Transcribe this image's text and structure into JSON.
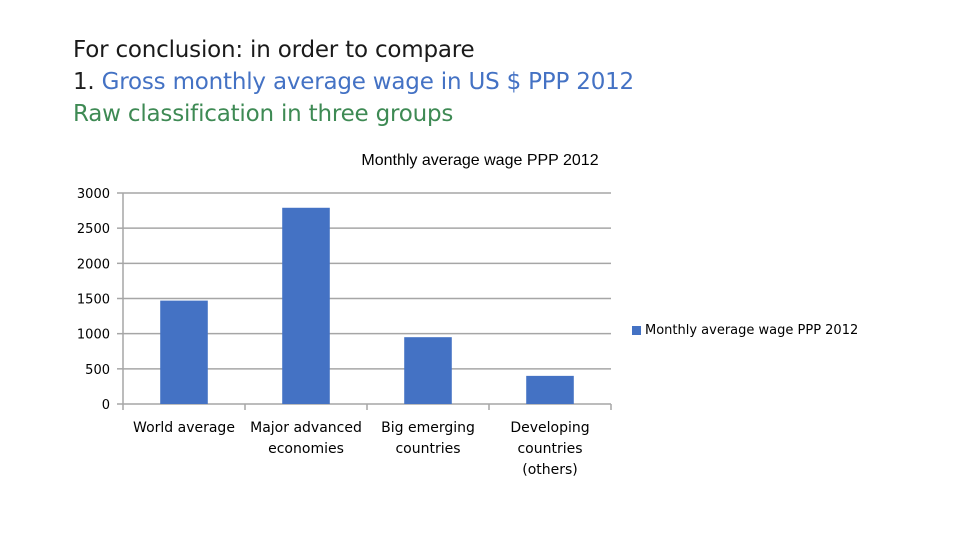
{
  "heading": {
    "line1": "For conclusion: in order to compare",
    "line2_prefix": "1. ",
    "line2_accent": "Gross monthly average wage in US $ PPP 2012",
    "line3": "Raw classification in three groups"
  },
  "colors": {
    "bar": "#4472c4",
    "accent_text": "#4472c4",
    "green_text": "#3e8a54",
    "grid": "#a6a6a6"
  },
  "chart_data": {
    "type": "bar",
    "title": "Monthly average wage PPP 2012",
    "categories": [
      [
        "World average"
      ],
      [
        "Major advanced",
        "economies"
      ],
      [
        "Big emerging",
        "countries"
      ],
      [
        "Developing",
        "countries",
        "(others)"
      ]
    ],
    "series": [
      {
        "name": "Monthly average wage PPP 2012",
        "values": [
          1470,
          2790,
          950,
          400
        ]
      }
    ],
    "yticks": [
      0,
      500,
      1000,
      1500,
      2000,
      2500,
      3000
    ],
    "ylim": [
      0,
      3000
    ],
    "grid": true,
    "legend": "right"
  }
}
